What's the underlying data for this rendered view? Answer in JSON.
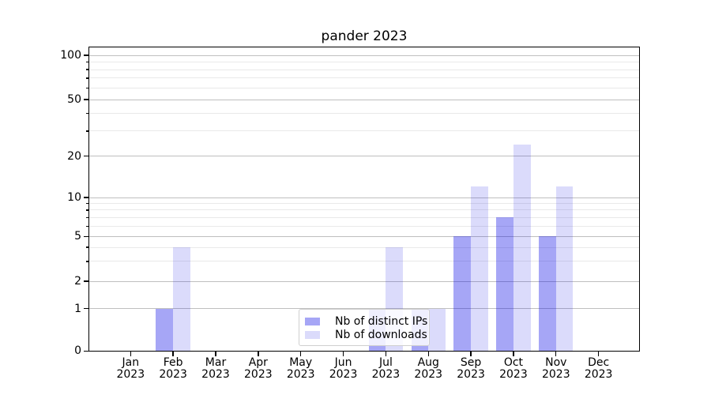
{
  "chart_data": {
    "type": "bar",
    "title": "pander 2023",
    "categories": [
      "Jan",
      "Feb",
      "Mar",
      "Apr",
      "May",
      "Jun",
      "Jul",
      "Aug",
      "Sep",
      "Oct",
      "Nov",
      "Dec"
    ],
    "category_year": "2023",
    "series": [
      {
        "name": "Nb of distinct IPs",
        "color": "#0000e6",
        "alpha": 0.35,
        "values": [
          0,
          1,
          0,
          0,
          0,
          0,
          1,
          1,
          5,
          7,
          5,
          0
        ]
      },
      {
        "name": "Nb of downloads",
        "color": "#0000e6",
        "alpha": 0.14,
        "values": [
          0,
          4,
          0,
          0,
          0,
          0,
          4,
          1,
          12,
          24,
          12,
          0
        ]
      }
    ],
    "xlabel": "",
    "ylabel": "",
    "yscale": "log-like",
    "ytick_labels": [
      "0",
      "1",
      "2",
      "5",
      "10",
      "20",
      "50",
      "100"
    ],
    "yticks": [
      0,
      1,
      2,
      5,
      10,
      20,
      50,
      100
    ],
    "ylim": [
      0,
      115
    ],
    "grid": true,
    "legend_position": "lower-center",
    "colors": {
      "grid_major": "#bfbfbf",
      "grid_minor": "#e9e9e9",
      "axis": "#000000",
      "background": "#ffffff"
    }
  }
}
